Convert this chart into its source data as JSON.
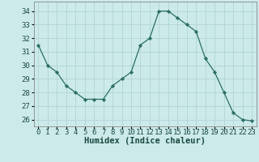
{
  "x": [
    0,
    1,
    2,
    3,
    4,
    5,
    6,
    7,
    8,
    9,
    10,
    11,
    12,
    13,
    14,
    15,
    16,
    17,
    18,
    19,
    20,
    21,
    22,
    23
  ],
  "y": [
    31.5,
    30.0,
    29.5,
    28.5,
    28.0,
    27.5,
    27.5,
    27.5,
    28.5,
    29.0,
    29.5,
    31.5,
    32.0,
    34.0,
    34.0,
    33.5,
    33.0,
    32.5,
    30.5,
    29.5,
    28.0,
    26.5,
    26.0,
    25.9
  ],
  "line_color": "#2a6e62",
  "marker": "D",
  "marker_size": 2.2,
  "bg_color": "#cceaea",
  "grid_color": "#b0d4d4",
  "xlabel": "Humidex (Indice chaleur)",
  "xlabel_fontsize": 7.5,
  "tick_fontsize": 6.5,
  "ylim": [
    25.5,
    34.7
  ],
  "yticks": [
    26,
    27,
    28,
    29,
    30,
    31,
    32,
    33,
    34
  ],
  "xtick_labels": [
    "0",
    "1",
    "2",
    "3",
    "4",
    "5",
    "6",
    "7",
    "8",
    "9",
    "10",
    "11",
    "12",
    "13",
    "14",
    "15",
    "16",
    "17",
    "18",
    "19",
    "20",
    "21",
    "22",
    "23"
  ]
}
